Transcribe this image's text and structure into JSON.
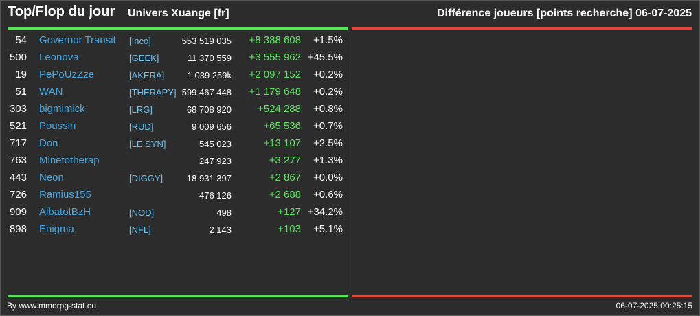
{
  "header": {
    "title": "Top/Flop du jour",
    "universe": "Univers Xuange [fr]",
    "metric": "Différence joueurs [points recherche]",
    "date": "06-07-2025"
  },
  "colors": {
    "top_accent": "#55e65a",
    "flop_accent": "#e0473f",
    "player_name": "#3fa9e8",
    "alliance": "#6cc3f0",
    "gain": "#55e65a"
  },
  "top_rows": [
    {
      "rank": "54",
      "name": "Governor Transit",
      "alliance": "[Inco]",
      "points": "553 519 035",
      "diff": "+8 388 608",
      "pct": "+1.5%"
    },
    {
      "rank": "500",
      "name": "Leonova",
      "alliance": "[GEEK]",
      "points": "11 370 559",
      "diff": "+3 555 962",
      "pct": "+45.5%"
    },
    {
      "rank": "19",
      "name": "PePoUzZze",
      "alliance": "[AKERA]",
      "points": "1 039 259k",
      "diff": "+2 097 152",
      "pct": "+0.2%"
    },
    {
      "rank": "51",
      "name": "WAN",
      "alliance": "[THERAPY]",
      "points": "599 467 448",
      "diff": "+1 179 648",
      "pct": "+0.2%"
    },
    {
      "rank": "303",
      "name": "bigmimick",
      "alliance": "[LRG]",
      "points": "68 708 920",
      "diff": "+524 288",
      "pct": "+0.8%"
    },
    {
      "rank": "521",
      "name": "Poussin",
      "alliance": "[RUD]",
      "points": "9 009 656",
      "diff": "+65 536",
      "pct": "+0.7%"
    },
    {
      "rank": "717",
      "name": "Don",
      "alliance": "[LE SYN]",
      "points": "545 023",
      "diff": "+13 107",
      "pct": "+2.5%"
    },
    {
      "rank": "763",
      "name": "Minetotherap",
      "alliance": "",
      "points": "247 923",
      "diff": "+3 277",
      "pct": "+1.3%"
    },
    {
      "rank": "443",
      "name": "Neon",
      "alliance": "[DIGGY]",
      "points": "18 931 397",
      "diff": "+2 867",
      "pct": "+0.0%"
    },
    {
      "rank": "726",
      "name": "Ramius155",
      "alliance": "",
      "points": "476 126",
      "diff": "+2 688",
      "pct": "+0.6%"
    },
    {
      "rank": "909",
      "name": "AlbatotBzH",
      "alliance": "[NOD]",
      "points": "498",
      "diff": "+127",
      "pct": "+34.2%"
    },
    {
      "rank": "898",
      "name": "Enigma",
      "alliance": "[NFL]",
      "points": "2 143",
      "diff": "+103",
      "pct": "+5.1%"
    }
  ],
  "footer": {
    "credit": "By www.mmorpg-stat.eu",
    "timestamp": "06-07-2025 00:25:15"
  }
}
